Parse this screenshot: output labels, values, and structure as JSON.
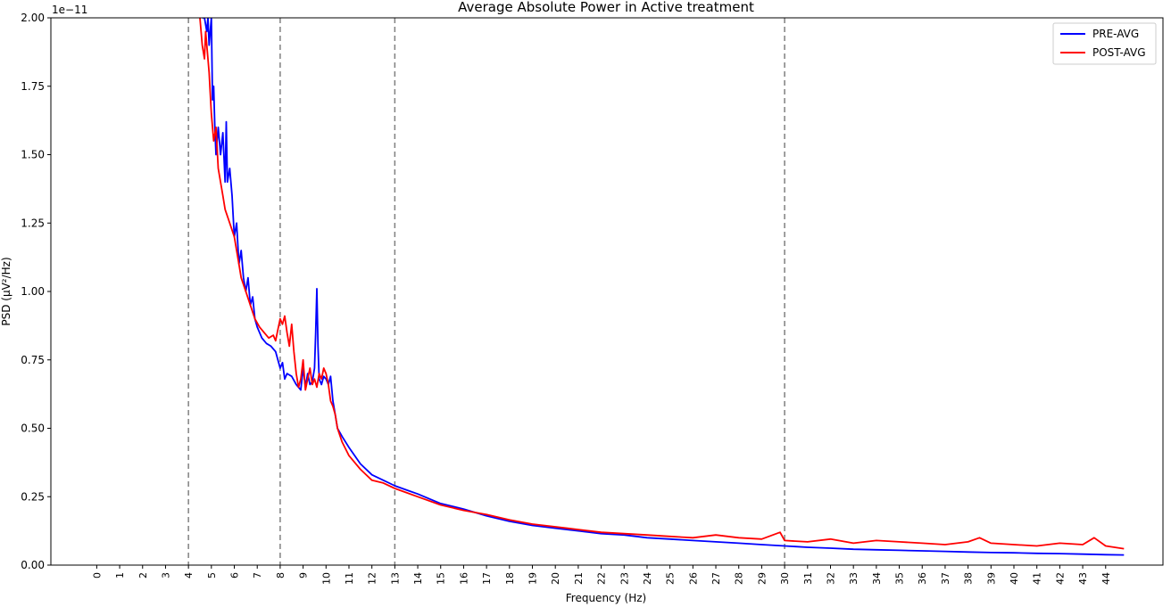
{
  "chart_data": {
    "type": "line",
    "title": "Average Absolute Power in Active treatment",
    "xlabel": "Frequency (Hz)",
    "ylabel": "PSD (µV²/Hz)",
    "y_scale_label": "1e−11",
    "xlim": [
      -2,
      46.5
    ],
    "ylim": [
      0,
      2.0
    ],
    "x_ticks": [
      0,
      1,
      2,
      3,
      4,
      5,
      6,
      7,
      8,
      9,
      10,
      11,
      12,
      13,
      14,
      15,
      16,
      17,
      18,
      19,
      20,
      21,
      22,
      23,
      24,
      25,
      26,
      27,
      28,
      29,
      30,
      31,
      32,
      33,
      34,
      35,
      36,
      37,
      38,
      39,
      40,
      41,
      42,
      43,
      44
    ],
    "y_ticks": [
      0.0,
      0.25,
      0.5,
      0.75,
      1.0,
      1.25,
      1.5,
      1.75,
      2.0
    ],
    "y_tick_labels": [
      "0.00",
      "0.25",
      "0.50",
      "0.75",
      "1.00",
      "1.25",
      "1.50",
      "1.75",
      "2.00"
    ],
    "vlines": [
      4,
      8,
      13,
      30
    ],
    "legend_position": "top-right",
    "series": [
      {
        "name": "PRE-AVG",
        "color": "#0000ff",
        "x": [
          4.6,
          4.7,
          4.8,
          4.85,
          4.9,
          5.0,
          5.05,
          5.1,
          5.15,
          5.2,
          5.3,
          5.4,
          5.5,
          5.6,
          5.65,
          5.7,
          5.8,
          5.9,
          6.0,
          6.1,
          6.2,
          6.3,
          6.4,
          6.5,
          6.6,
          6.7,
          6.8,
          6.9,
          7.0,
          7.2,
          7.4,
          7.6,
          7.8,
          8.0,
          8.1,
          8.2,
          8.3,
          8.5,
          8.7,
          8.9,
          9.0,
          9.1,
          9.2,
          9.3,
          9.4,
          9.5,
          9.55,
          9.6,
          9.65,
          9.7,
          9.8,
          9.9,
          10.0,
          10.1,
          10.2,
          10.3,
          10.4,
          10.5,
          10.7,
          11.0,
          11.5,
          12.0,
          12.5,
          13.0,
          13.5,
          14.0,
          15.0,
          16.0,
          17.0,
          18.0,
          19.0,
          20.0,
          21.0,
          22.0,
          23.0,
          24.0,
          25.0,
          26.0,
          27.0,
          28.0,
          29.0,
          30.0,
          31.0,
          32.0,
          33.0,
          34.0,
          35.0,
          36.0,
          37.0,
          38.0,
          39.0,
          40.0,
          41.0,
          42.0,
          43.0,
          44.0,
          44.8
        ],
        "values": [
          2.0,
          2.0,
          1.95,
          2.0,
          1.9,
          2.0,
          1.7,
          1.75,
          1.6,
          1.5,
          1.6,
          1.5,
          1.58,
          1.4,
          1.62,
          1.4,
          1.45,
          1.35,
          1.2,
          1.25,
          1.1,
          1.15,
          1.05,
          1.0,
          1.05,
          0.95,
          0.98,
          0.9,
          0.87,
          0.83,
          0.81,
          0.8,
          0.78,
          0.72,
          0.74,
          0.68,
          0.7,
          0.69,
          0.66,
          0.64,
          0.72,
          0.65,
          0.7,
          0.66,
          0.67,
          0.72,
          0.85,
          1.01,
          0.8,
          0.68,
          0.66,
          0.69,
          0.68,
          0.66,
          0.69,
          0.6,
          0.55,
          0.5,
          0.47,
          0.43,
          0.37,
          0.33,
          0.31,
          0.29,
          0.275,
          0.26,
          0.225,
          0.205,
          0.18,
          0.16,
          0.145,
          0.135,
          0.125,
          0.115,
          0.11,
          0.1,
          0.095,
          0.09,
          0.085,
          0.08,
          0.075,
          0.07,
          0.065,
          0.062,
          0.058,
          0.056,
          0.054,
          0.052,
          0.05,
          0.048,
          0.046,
          0.045,
          0.043,
          0.042,
          0.04,
          0.038,
          0.037
        ]
      },
      {
        "name": "POST-AVG",
        "color": "#ff0000",
        "x": [
          4.5,
          4.6,
          4.7,
          4.75,
          4.8,
          4.9,
          5.0,
          5.1,
          5.2,
          5.3,
          5.4,
          5.5,
          5.6,
          5.8,
          6.0,
          6.1,
          6.2,
          6.3,
          6.5,
          6.7,
          6.9,
          7.1,
          7.3,
          7.5,
          7.7,
          7.8,
          7.9,
          8.0,
          8.1,
          8.2,
          8.3,
          8.4,
          8.5,
          8.6,
          8.7,
          8.8,
          8.9,
          9.0,
          9.1,
          9.2,
          9.3,
          9.4,
          9.5,
          9.6,
          9.7,
          9.8,
          9.9,
          10.0,
          10.1,
          10.2,
          10.3,
          10.4,
          10.5,
          10.7,
          11.0,
          11.5,
          12.0,
          12.5,
          13.0,
          13.5,
          14.0,
          15.0,
          16.0,
          17.0,
          18.0,
          19.0,
          20.0,
          21.0,
          22.0,
          23.0,
          24.0,
          25.0,
          26.0,
          27.0,
          28.0,
          29.0,
          29.8,
          30.0,
          31.0,
          32.0,
          33.0,
          34.0,
          35.0,
          36.0,
          37.0,
          38.0,
          38.5,
          39.0,
          40.0,
          41.0,
          42.0,
          43.0,
          43.5,
          44.0,
          44.8
        ],
        "values": [
          2.0,
          1.9,
          1.85,
          1.95,
          1.9,
          1.8,
          1.65,
          1.55,
          1.6,
          1.45,
          1.4,
          1.35,
          1.3,
          1.25,
          1.2,
          1.15,
          1.1,
          1.05,
          1.0,
          0.95,
          0.9,
          0.87,
          0.85,
          0.83,
          0.84,
          0.82,
          0.86,
          0.9,
          0.88,
          0.91,
          0.85,
          0.8,
          0.88,
          0.78,
          0.7,
          0.65,
          0.68,
          0.75,
          0.64,
          0.68,
          0.72,
          0.66,
          0.68,
          0.65,
          0.7,
          0.68,
          0.72,
          0.7,
          0.66,
          0.6,
          0.58,
          0.55,
          0.5,
          0.45,
          0.4,
          0.35,
          0.31,
          0.3,
          0.28,
          0.265,
          0.25,
          0.22,
          0.2,
          0.185,
          0.165,
          0.15,
          0.14,
          0.13,
          0.12,
          0.115,
          0.11,
          0.105,
          0.1,
          0.11,
          0.1,
          0.095,
          0.12,
          0.09,
          0.085,
          0.095,
          0.08,
          0.09,
          0.085,
          0.08,
          0.075,
          0.085,
          0.1,
          0.08,
          0.075,
          0.07,
          0.08,
          0.075,
          0.1,
          0.07,
          0.06
        ]
      }
    ]
  }
}
